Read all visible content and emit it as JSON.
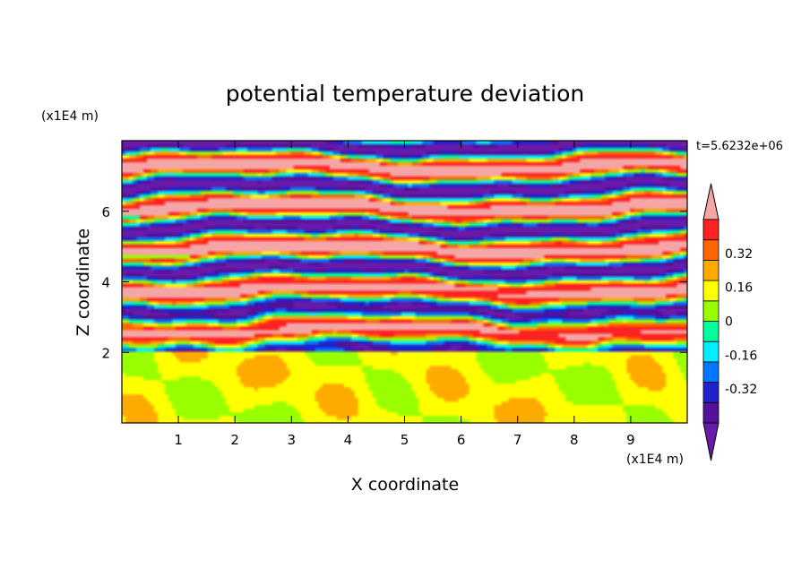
{
  "chart_data": {
    "type": "heatmap",
    "title": "potential temperature deviation",
    "xlabel": "X coordinate",
    "ylabel": "Z coordinate",
    "x_unit": "(x1E4 m)",
    "y_unit": "(x1E4 m)",
    "time_label": "t=5.6232e+06",
    "xlim": [
      0,
      10
    ],
    "ylim": [
      0,
      8
    ],
    "x_ticks": [
      "1",
      "2",
      "3",
      "4",
      "5",
      "6",
      "7",
      "8",
      "9"
    ],
    "y_ticks": [
      "2",
      "4",
      "6"
    ],
    "grid": false,
    "colorbar": {
      "levels": [
        -0.48,
        -0.4,
        -0.32,
        -0.24,
        -0.16,
        -0.08,
        0,
        0.08,
        0.16,
        0.24,
        0.32,
        0.4,
        0.48
      ],
      "colors": [
        "#54109a",
        "#2222cc",
        "#0077ff",
        "#00eeff",
        "#00ff9a",
        "#99ff00",
        "#ffff00",
        "#ffaa00",
        "#ff6600",
        "#ff2222"
      ],
      "under_color": "#6a1aa8",
      "over_color": "#f4a6a6",
      "labels": [
        "0.32",
        "0.16",
        "0",
        "-0.16",
        "-0.32"
      ],
      "label_values": [
        0.32,
        0.16,
        0,
        -0.16,
        -0.32
      ]
    },
    "regions": {
      "lower_layer_z": [
        0,
        2
      ],
      "lower_layer_dominant": "0 to 0.08",
      "upper_layer_z": [
        2,
        8
      ],
      "upper_layer_pattern": "horizontal bands alternating strongly negative (< -0.48) and strongly positive (> 0.48)"
    }
  }
}
